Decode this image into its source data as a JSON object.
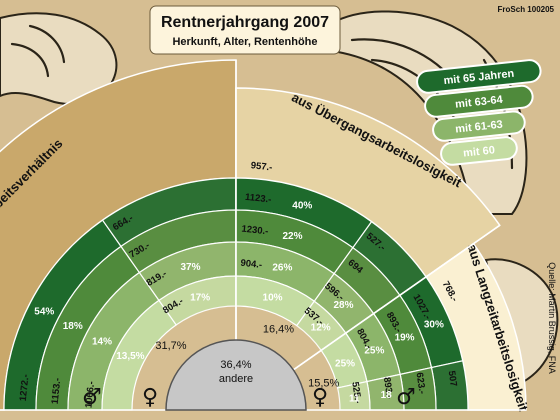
{
  "title": "Rentnerjahrgang 2007",
  "subtitle": "Herkunft, Alter, Rentenhöhe",
  "credit": "FroSch 100205",
  "source": "Quelle: Martin Brussig, FNA",
  "chart_data": {
    "type": "fan",
    "age_groups": [
      {
        "key": "65",
        "name": "mit 65 Jahren",
        "color": "#1e6a2c"
      },
      {
        "key": "6364",
        "name": "mit 63-64",
        "color": "#4f8a3b"
      },
      {
        "key": "6163",
        "name": "mit 61-63",
        "color": "#8cb56a"
      },
      {
        "key": "60",
        "name": "mit 60",
        "color": "#c4dca2"
      }
    ],
    "sectors": [
      {
        "name": "aus Arbeitsverhältnis",
        "share": "31,7%",
        "bg": "#c9a86b",
        "female_share_pct": 39,
        "rings": [
          {
            "key": "65",
            "pct": 54,
            "label": "54%",
            "amount_male": "1253.-",
            "amount_female": "664.-"
          },
          {
            "key": "6364",
            "pct": 18,
            "label": "18%",
            "amount_male": "1272.-",
            "amount_female": "730.-"
          },
          {
            "key": "6163",
            "pct": 14,
            "label": "14%",
            "amount_male": "1153.-",
            "amount_female": "819.-"
          },
          {
            "key": "60",
            "pct": 13.5,
            "label": "13,5%",
            "amount_male": "1066.-",
            "amount_female": "804.-"
          }
        ],
        "female_rings": [
          {
            "key": "65",
            "label": "37%"
          },
          {
            "key": "6364",
            "label": "17%"
          },
          {
            "key": "6163",
            "label": "23%"
          },
          {
            "key": "60",
            "label": "23%"
          }
        ]
      },
      {
        "name": "aus Übergangsarbeitslosigkeit",
        "share": "16,4%",
        "bg": "#e6d3a4",
        "rings": [
          {
            "key": "65",
            "pct": 40,
            "label": "40%",
            "amount_male": "957.-",
            "amount_female": "527.-"
          },
          {
            "key": "6364",
            "pct": 22,
            "label": "22%",
            "amount_male": "1123.-",
            "amount_female": "694"
          },
          {
            "key": "6163",
            "pct": 26,
            "label": "26%",
            "amount_male": "1230.-",
            "amount_female": "596.-"
          },
          {
            "key": "60",
            "pct": 10,
            "label": "10%",
            "amount_male": "904.-",
            "amount_female": "537.-"
          }
        ],
        "female_rings": [
          {
            "key": "65",
            "label": "28%"
          },
          {
            "key": "6364",
            "label": "12%"
          },
          {
            "key": "6163",
            "label": "31%"
          },
          {
            "key": "60",
            "label": "28%"
          }
        ]
      },
      {
        "name": "aus Langzeitarbeitslosigkeit",
        "share": "15,5%",
        "bg": "#faf0d2",
        "rings": [
          {
            "key": "65",
            "pct": 30,
            "label": "30%",
            "amount_male": "768.-",
            "amount_female": "507"
          },
          {
            "key": "6364",
            "pct": 19,
            "label": "19%",
            "amount_male": "1027.-",
            "amount_female": "623.-"
          },
          {
            "key": "6163",
            "pct": 25,
            "label": "25%",
            "amount_male": "893.-",
            "amount_female": "893.-"
          },
          {
            "key": "60",
            "pct": 25,
            "label": "25%",
            "amount_male": "804.-",
            "amount_female": "525.-"
          }
        ],
        "female_rings": [
          {
            "key": "65",
            "label": "18"
          },
          {
            "key": "6364",
            "label": "11"
          },
          {
            "key": "6163",
            "label": "25"
          },
          {
            "key": "60",
            "label": "45%"
          }
        ]
      }
    ],
    "other": {
      "share": "36,4%",
      "label": "andere"
    },
    "gender_symbols": [
      "♂",
      "♀",
      "♀",
      "♂"
    ]
  }
}
